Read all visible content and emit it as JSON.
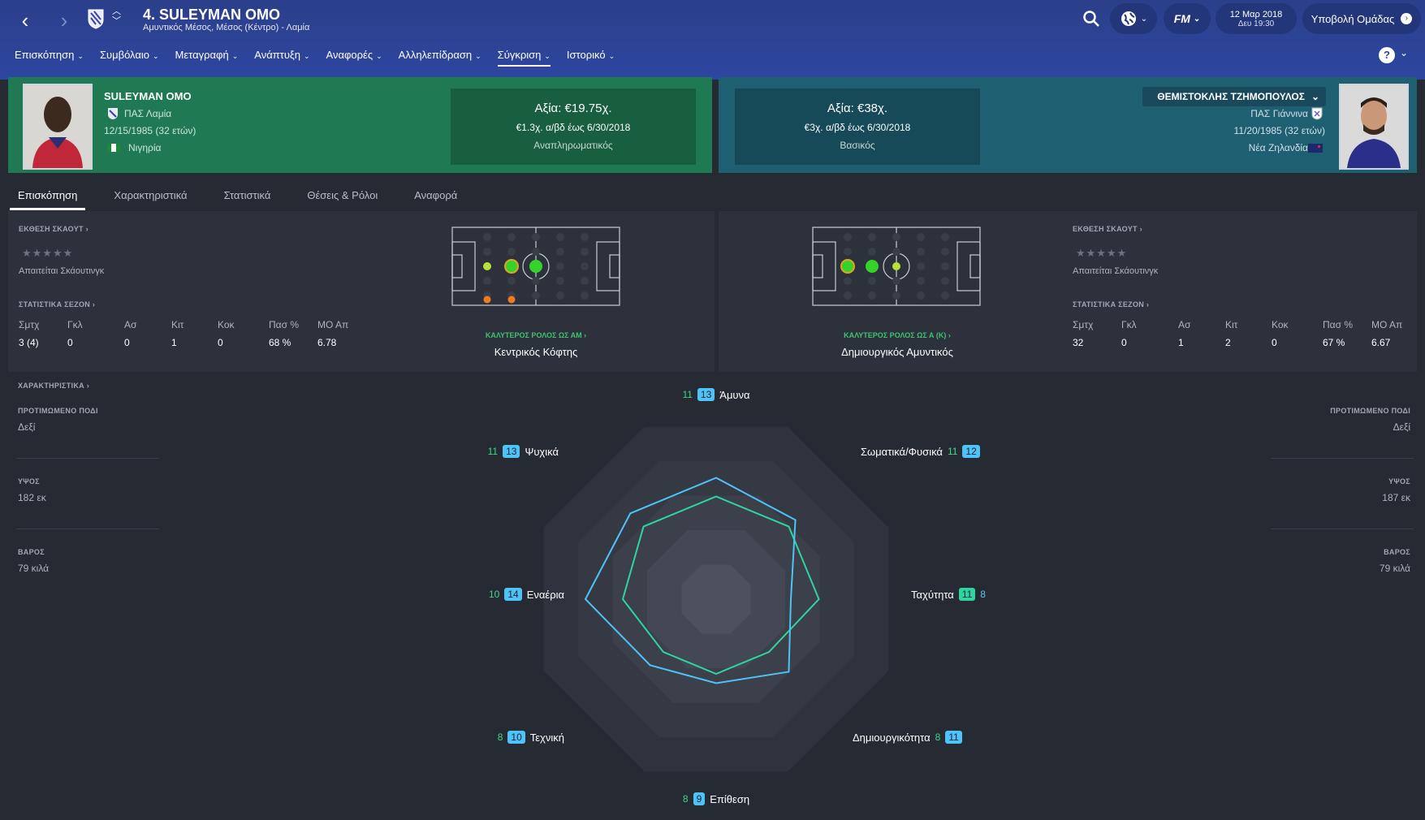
{
  "header": {
    "title": "4. SULEYMAN OMO",
    "subtitle": "Αμυντικός Μέσος, Μέσος (Κέντρο) - Λαμία",
    "date": "12 Μαρ 2018",
    "time": "Δευ 19:30",
    "submit_label": "Υποβολή Ομάδας"
  },
  "menu": {
    "items": [
      {
        "label": "Επισκόπηση"
      },
      {
        "label": "Συμβόλαιο"
      },
      {
        "label": "Μεταγραφή"
      },
      {
        "label": "Ανάπτυξη"
      },
      {
        "label": "Αναφορές"
      },
      {
        "label": "Αλληλεπίδραση"
      },
      {
        "label": "Σύγκριση"
      },
      {
        "label": "Ιστορικό"
      }
    ],
    "active": "Σύγκριση"
  },
  "left_player": {
    "name": "SULEYMAN OMO",
    "club": "ΠΑΣ Λαμία",
    "dob": "12/15/1985 (32 ετών)",
    "nation": "Νιγηρία",
    "value": "Αξία: €19.75χ.",
    "wage": "€1.3χ. α/βδ έως 6/30/2018",
    "status": "Αναπληρωματικός"
  },
  "right_player": {
    "name": "ΘΕΜΙΣΤΟΚΛΗΣ ΤΖΗΜΟΠΟΥΛΟΣ",
    "club": "ΠΑΣ Γιάννινα",
    "dob": "11/20/1985 (32 ετών)",
    "nation": "Νέα Ζηλανδία",
    "value": "Αξία: €38χ.",
    "wage": "€3χ. α/βδ έως 6/30/2018",
    "status": "Βασικός"
  },
  "tabs": [
    {
      "label": "Επισκόπηση"
    },
    {
      "label": "Χαρακτηριστικά"
    },
    {
      "label": "Στατιστικά"
    },
    {
      "label": "Θέσεις & Ρόλοι"
    },
    {
      "label": "Αναφορά"
    }
  ],
  "scout": {
    "title": "ΕΚΘΕΣΗ ΣΚΑΟΥΤ",
    "stars": "★★★★★",
    "note": "Απαιτείται Σκάουτινγκ",
    "season_title": "ΣΤΑΤΙΣΤΙΚΑ ΣΕΖΟΝ"
  },
  "stat_headers": [
    "Σμτχ",
    "Γκλ",
    "Ασ",
    "Κιτ",
    "Κοκ",
    "Πασ %",
    "ΜΟ Απ"
  ],
  "left_stats": [
    "3 (4)",
    "0",
    "0",
    "1",
    "0",
    "68 %",
    "6.78"
  ],
  "right_stats": [
    "32",
    "0",
    "1",
    "2",
    "0",
    "67 %",
    "6.67"
  ],
  "left_role": {
    "label": "ΚΑΛΥΤΕΡΟΣ ΡΟΛΟΣ ΩΣ ΑΜ ›",
    "value": "Κεντρικός Κόφτης"
  },
  "right_role": {
    "label": "ΚΑΛΥΤΕΡΟΣ ΡΟΛΟΣ ΩΣ Α (Κ) ›",
    "value": "Δημιουργικός Αμυντικός"
  },
  "traits": {
    "title": "ΧΑΡΑΚΤΗΡΙΣΤΙΚΑ",
    "foot_label": "ΠΡΟΤΙΜΩΜΕΝΟ ΠΟΔΙ",
    "height_label": "ΥΨΟΣ",
    "weight_label": "ΒΑΡΟΣ",
    "left": {
      "foot": "Δεξί",
      "height": "182 εκ",
      "weight": "79 κιλά"
    },
    "right": {
      "foot": "Δεξί",
      "height": "187 εκ",
      "weight": "79 κιλά"
    }
  },
  "radar": {
    "attributes": [
      {
        "name": "Άμυνα",
        "a": "11",
        "b": "13"
      },
      {
        "name": "Σωματικά/Φυσικά",
        "a": "11",
        "b": "12"
      },
      {
        "name": "Ταχύτητα",
        "a": "11",
        "b": "8"
      },
      {
        "name": "Δημιουργικότητα",
        "a": "8",
        "b": "11"
      },
      {
        "name": "Επίθεση",
        "a": "8",
        "b": "9"
      },
      {
        "name": "Τεχνική",
        "a": "8",
        "b": "10"
      },
      {
        "name": "Εναέρια",
        "a": "10",
        "b": "14"
      },
      {
        "name": "Ψυχικά",
        "a": "11",
        "b": "13"
      }
    ],
    "color_a": "#2ed69d",
    "color_b": "#4fc3f7"
  }
}
